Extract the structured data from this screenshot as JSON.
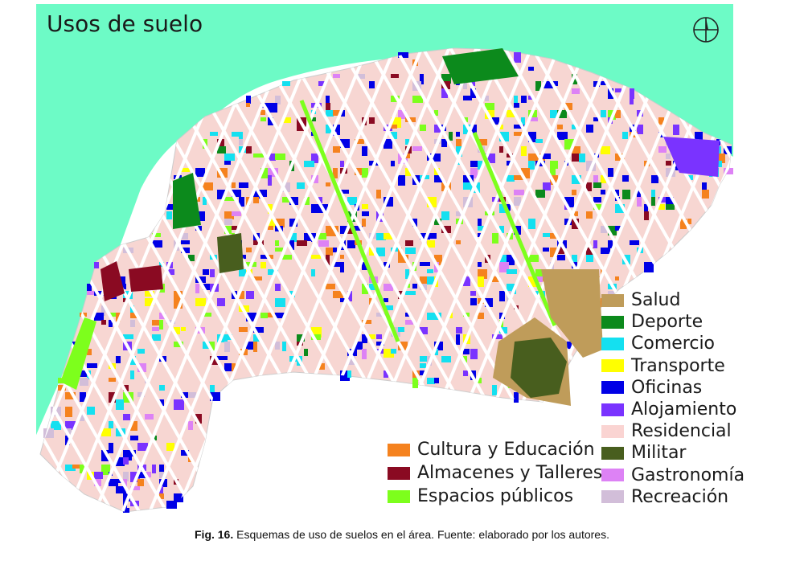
{
  "map": {
    "title": "Usos de suelo",
    "compass_icon": "north-arrow-icon",
    "colors": {
      "sea": "#6dfbc6",
      "land": "#f7d6d2",
      "streets": "#ffffff"
    }
  },
  "legend_right": [
    {
      "label": "Salud",
      "color": "#bf9c5a"
    },
    {
      "label": "Deporte",
      "color": "#0c8a1c"
    },
    {
      "label": "Comercio",
      "color": "#14e0f0"
    },
    {
      "label": "Transporte",
      "color": "#ffff00"
    },
    {
      "label": "Oficinas",
      "color": "#0000e6"
    },
    {
      "label": "Alojamiento",
      "color": "#7a33ff"
    },
    {
      "label": "Residencial",
      "color": "#fad4d2"
    },
    {
      "label": "Militar",
      "color": "#485e1e"
    },
    {
      "label": "Gastronomía",
      "color": "#dd82f5"
    },
    {
      "label": "Recreación",
      "color": "#d2bed9"
    }
  ],
  "legend_left": [
    {
      "label": "Cultura y Educación",
      "color": "#f5821e"
    },
    {
      "label": "Almacenes y Talleres",
      "color": "#8a0a22"
    },
    {
      "label": "Espacios públicos",
      "color": "#7dff1c"
    }
  ],
  "caption": {
    "prefix": "Fig. 16.",
    "text": " Esquemas de uso de suelos en el área. Fuente: elaborado por los autores."
  }
}
